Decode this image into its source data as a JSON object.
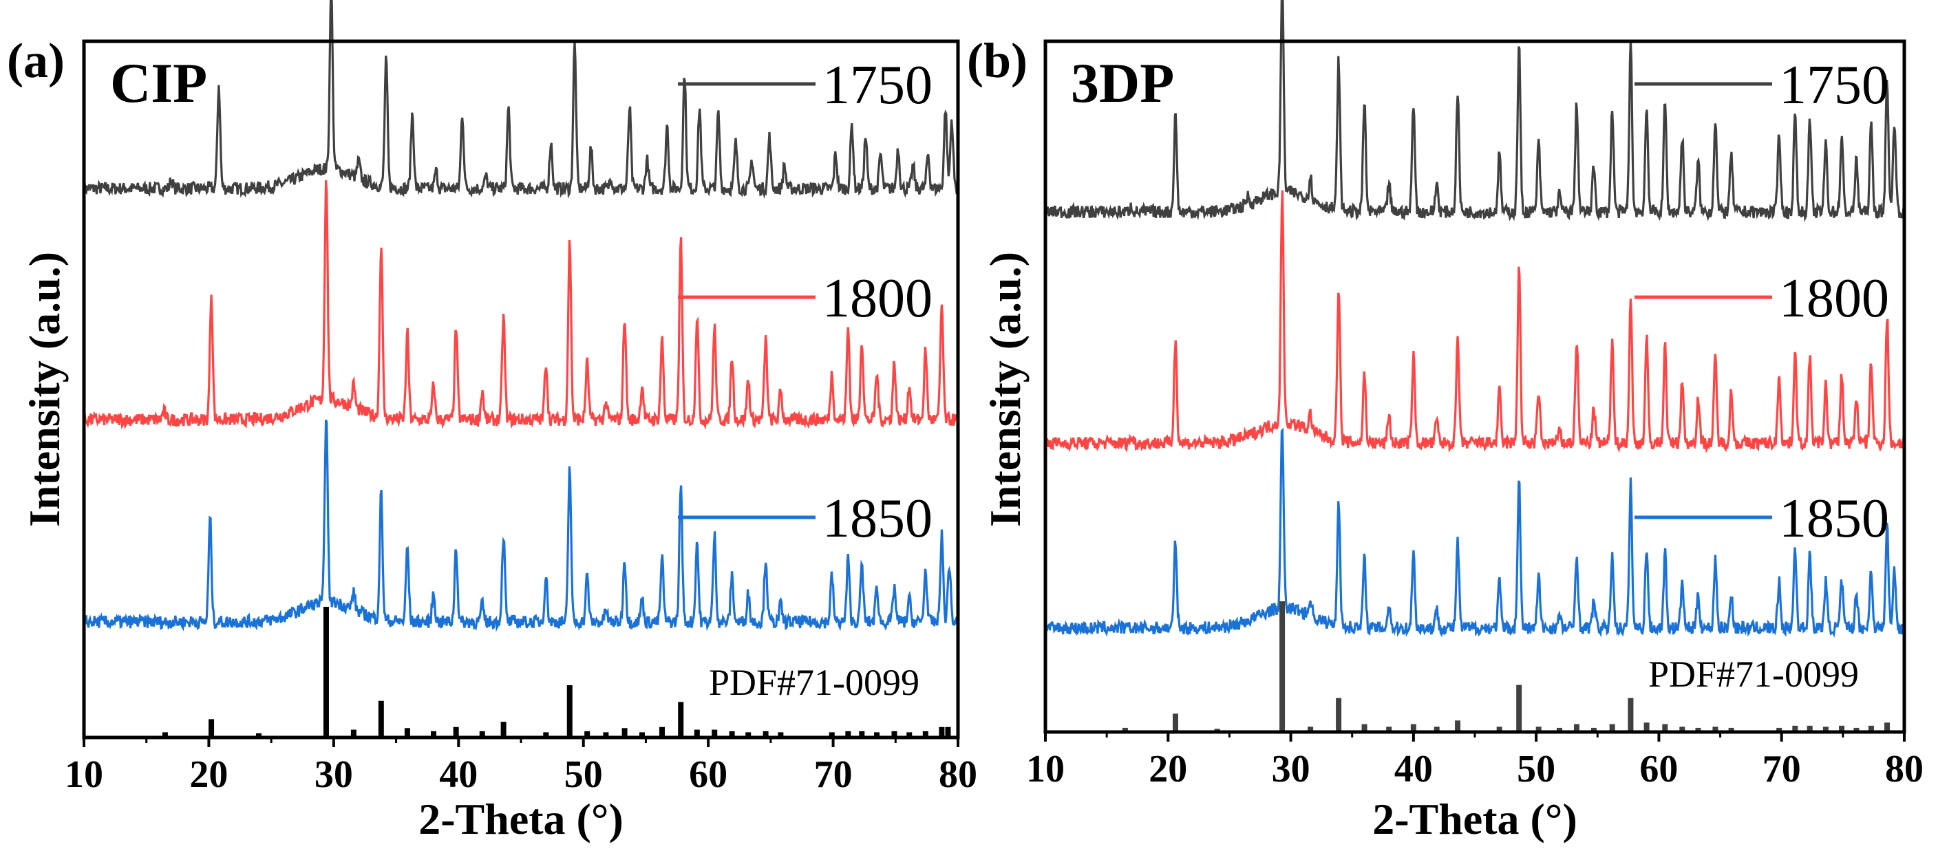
{
  "figure": {
    "panels": [
      {
        "panel_label": "(a)",
        "title": "CIP",
        "reference_label": "PDF#71-0099",
        "reference_color": "#000000"
      },
      {
        "panel_label": "(b)",
        "title": "3DP",
        "reference_label": "PDF#71-0099",
        "reference_color": "#404040"
      }
    ]
  },
  "chart_data": [
    {
      "type": "line",
      "title": "CIP",
      "panel_label": "(a)",
      "xlabel": "2-Theta (°)",
      "ylabel": "Intensity (a.u.)",
      "xlim": [
        10,
        80
      ],
      "ylim": [
        0,
        12
      ],
      "xticks": [
        "10",
        "20",
        "30",
        "40",
        "50",
        "60",
        "70",
        "80"
      ],
      "series": [
        {
          "name": "1750",
          "color": "#404040",
          "baseline": 9.5,
          "peaks": [
            [
              17.0,
              0.15
            ],
            [
              20.8,
              1.8
            ],
            [
              29.8,
              3.2
            ],
            [
              32.0,
              0.3
            ],
            [
              34.2,
              2.2
            ],
            [
              36.3,
              1.3
            ],
            [
              38.2,
              0.3
            ],
            [
              40.3,
              1.3
            ],
            [
              42.2,
              0.2
            ],
            [
              44.0,
              1.4
            ],
            [
              47.4,
              0.8
            ],
            [
              49.3,
              2.5
            ],
            [
              50.6,
              0.7
            ],
            [
              52.2,
              0.2
            ],
            [
              53.7,
              1.4
            ],
            [
              55.1,
              0.5
            ],
            [
              56.7,
              1.1
            ],
            [
              58.1,
              2.0
            ],
            [
              59.3,
              1.4
            ],
            [
              60.8,
              1.3
            ],
            [
              62.2,
              0.8
            ],
            [
              63.5,
              0.5
            ],
            [
              64.9,
              0.9
            ],
            [
              66.1,
              0.4
            ],
            [
              70.2,
              0.6
            ],
            [
              71.5,
              1.1
            ],
            [
              72.6,
              0.9
            ],
            [
              73.8,
              0.6
            ],
            [
              75.2,
              0.7
            ],
            [
              76.4,
              0.4
            ],
            [
              77.6,
              0.6
            ],
            [
              79.0,
              1.4
            ],
            [
              79.5,
              1.2
            ]
          ]
        },
        {
          "name": "1800",
          "color": "#ff4444",
          "baseline": 5.5,
          "peaks": [
            [
              16.4,
              0.15
            ],
            [
              20.2,
              2.2
            ],
            [
              29.4,
              3.9
            ],
            [
              31.6,
              0.4
            ],
            [
              33.8,
              3.0
            ],
            [
              35.9,
              1.5
            ],
            [
              38.0,
              0.6
            ],
            [
              39.8,
              1.6
            ],
            [
              41.9,
              0.5
            ],
            [
              43.6,
              1.8
            ],
            [
              47.0,
              1.0
            ],
            [
              48.9,
              3.1
            ],
            [
              50.3,
              1.0
            ],
            [
              51.8,
              0.3
            ],
            [
              53.3,
              1.8
            ],
            [
              54.7,
              0.6
            ],
            [
              56.3,
              1.4
            ],
            [
              57.8,
              3.1
            ],
            [
              59.1,
              1.8
            ],
            [
              60.5,
              1.6
            ],
            [
              61.9,
              1.1
            ],
            [
              63.2,
              0.7
            ],
            [
              64.6,
              1.4
            ],
            [
              65.8,
              0.5
            ],
            [
              69.9,
              0.8
            ],
            [
              71.2,
              1.6
            ],
            [
              72.3,
              1.4
            ],
            [
              73.5,
              0.8
            ],
            [
              74.9,
              1.0
            ],
            [
              76.1,
              0.6
            ],
            [
              77.4,
              1.2
            ],
            [
              78.7,
              2.0
            ]
          ]
        },
        {
          "name": "1850",
          "color": "#1a72d8",
          "baseline": 2.0,
          "peaks": [
            [
              20.1,
              1.8
            ],
            [
              29.4,
              3.3
            ],
            [
              31.6,
              0.3
            ],
            [
              33.8,
              2.2
            ],
            [
              35.9,
              1.3
            ],
            [
              38.0,
              0.5
            ],
            [
              39.8,
              1.3
            ],
            [
              41.9,
              0.3
            ],
            [
              43.6,
              1.5
            ],
            [
              47.0,
              0.8
            ],
            [
              48.9,
              2.7
            ],
            [
              50.3,
              0.8
            ],
            [
              51.8,
              0.2
            ],
            [
              53.3,
              1.1
            ],
            [
              54.7,
              0.4
            ],
            [
              56.3,
              1.1
            ],
            [
              57.8,
              2.4
            ],
            [
              59.1,
              1.4
            ],
            [
              60.5,
              1.5
            ],
            [
              61.9,
              0.8
            ],
            [
              63.2,
              0.5
            ],
            [
              64.6,
              1.1
            ],
            [
              65.8,
              0.3
            ],
            [
              69.9,
              0.8
            ],
            [
              71.2,
              1.1
            ],
            [
              72.3,
              1.0
            ],
            [
              73.5,
              0.6
            ],
            [
              74.9,
              0.6
            ],
            [
              76.1,
              0.4
            ],
            [
              77.4,
              0.9
            ],
            [
              78.7,
              1.5
            ],
            [
              79.3,
              1.0
            ]
          ]
        }
      ],
      "reference": {
        "name": "PDF#71-0099",
        "positions": [
          16.5,
          20.2,
          24.0,
          29.4,
          31.6,
          33.8,
          35.9,
          38.0,
          39.8,
          41.9,
          43.6,
          47.0,
          48.9,
          50.3,
          51.8,
          53.3,
          54.7,
          56.3,
          57.8,
          59.1,
          60.5,
          61.9,
          63.2,
          64.6,
          65.8,
          69.9,
          71.2,
          72.3,
          73.5,
          74.9,
          76.1,
          77.4,
          78.7,
          79.2
        ],
        "intensities": [
          0.1,
          0.35,
          0.08,
          2.5,
          0.15,
          0.7,
          0.18,
          0.12,
          0.2,
          0.12,
          0.3,
          0.1,
          1.0,
          0.12,
          0.1,
          0.18,
          0.1,
          0.2,
          0.68,
          0.15,
          0.15,
          0.12,
          0.1,
          0.12,
          0.1,
          0.1,
          0.12,
          0.12,
          0.1,
          0.12,
          0.1,
          0.12,
          0.2,
          0.2
        ]
      },
      "annotations": [
        "1750",
        "1800",
        "1850",
        "PDF#71-0099"
      ]
    },
    {
      "type": "line",
      "title": "3DP",
      "panel_label": "(b)",
      "xlabel": "2-Theta (°)",
      "ylabel": "Intensity (a.u.)",
      "xlim": [
        10,
        80
      ],
      "ylim": [
        0,
        12
      ],
      "xticks": [
        "10",
        "20",
        "30",
        "40",
        "50",
        "60",
        "70",
        "80"
      ],
      "series": [
        {
          "name": "1750",
          "color": "#404040",
          "baseline": 9.0,
          "peaks": [
            [
              17.0,
              0.1
            ],
            [
              20.6,
              1.7
            ],
            [
              26.5,
              0.15
            ],
            [
              29.3,
              3.7
            ],
            [
              31.6,
              0.4
            ],
            [
              33.9,
              2.6
            ],
            [
              36.0,
              1.9
            ],
            [
              38.0,
              0.5
            ],
            [
              40.0,
              1.9
            ],
            [
              41.9,
              0.5
            ],
            [
              43.6,
              2.1
            ],
            [
              47.0,
              1.0
            ],
            [
              48.6,
              2.9
            ],
            [
              50.2,
              1.2
            ],
            [
              51.9,
              0.3
            ],
            [
              53.3,
              1.9
            ],
            [
              54.7,
              0.8
            ],
            [
              56.2,
              1.8
            ],
            [
              57.7,
              2.9
            ],
            [
              59.0,
              1.8
            ],
            [
              60.5,
              1.9
            ],
            [
              61.9,
              1.3
            ],
            [
              63.2,
              0.9
            ],
            [
              64.6,
              1.6
            ],
            [
              65.9,
              1.0
            ],
            [
              69.8,
              1.4
            ],
            [
              71.1,
              1.7
            ],
            [
              72.3,
              1.6
            ],
            [
              73.6,
              1.2
            ],
            [
              74.9,
              1.3
            ],
            [
              76.1,
              0.9
            ],
            [
              77.3,
              1.5
            ],
            [
              78.6,
              2.3
            ],
            [
              79.2,
              1.6
            ]
          ]
        },
        {
          "name": "1800",
          "color": "#ff4444",
          "baseline": 5.0,
          "peaks": [
            [
              17.0,
              0.1
            ],
            [
              20.6,
              1.8
            ],
            [
              29.3,
              4.0
            ],
            [
              31.6,
              0.3
            ],
            [
              33.9,
              2.7
            ],
            [
              36.0,
              1.2
            ],
            [
              38.0,
              0.5
            ],
            [
              40.0,
              1.5
            ],
            [
              41.9,
              0.4
            ],
            [
              43.6,
              1.8
            ],
            [
              47.0,
              0.9
            ],
            [
              48.6,
              3.1
            ],
            [
              50.2,
              0.9
            ],
            [
              51.9,
              0.2
            ],
            [
              53.3,
              1.8
            ],
            [
              54.7,
              0.6
            ],
            [
              56.2,
              1.8
            ],
            [
              57.7,
              2.5
            ],
            [
              59.0,
              1.8
            ],
            [
              60.5,
              1.7
            ],
            [
              61.9,
              1.1
            ],
            [
              63.2,
              0.8
            ],
            [
              64.6,
              1.5
            ],
            [
              65.9,
              0.9
            ],
            [
              69.8,
              1.2
            ],
            [
              71.1,
              1.6
            ],
            [
              72.3,
              1.5
            ],
            [
              73.6,
              1.0
            ],
            [
              74.9,
              1.2
            ],
            [
              76.1,
              0.8
            ],
            [
              77.3,
              1.4
            ],
            [
              78.6,
              2.2
            ]
          ]
        },
        {
          "name": "1850",
          "color": "#1a72d8",
          "baseline": 1.8,
          "peaks": [
            [
              20.6,
              1.5
            ],
            [
              29.3,
              3.2
            ],
            [
              31.6,
              0.3
            ],
            [
              33.9,
              2.2
            ],
            [
              36.0,
              1.2
            ],
            [
              38.0,
              0.4
            ],
            [
              40.0,
              1.3
            ],
            [
              41.9,
              0.3
            ],
            [
              43.6,
              1.5
            ],
            [
              47.0,
              0.8
            ],
            [
              48.6,
              2.6
            ],
            [
              50.2,
              0.9
            ],
            [
              51.9,
              0.2
            ],
            [
              53.3,
              1.3
            ],
            [
              54.7,
              0.5
            ],
            [
              56.2,
              1.3
            ],
            [
              57.7,
              2.5
            ],
            [
              59.0,
              1.4
            ],
            [
              60.5,
              1.3
            ],
            [
              61.9,
              0.8
            ],
            [
              63.2,
              0.6
            ],
            [
              64.6,
              1.2
            ],
            [
              65.9,
              0.6
            ],
            [
              69.8,
              0.8
            ],
            [
              71.1,
              1.4
            ],
            [
              72.3,
              1.3
            ],
            [
              73.6,
              0.8
            ],
            [
              74.9,
              0.8
            ],
            [
              76.1,
              0.6
            ],
            [
              77.3,
              1.0
            ],
            [
              78.6,
              1.8
            ],
            [
              79.2,
              1.0
            ]
          ]
        }
      ],
      "reference": {
        "name": "PDF#71-0099",
        "positions": [
          16.5,
          20.6,
          24.0,
          29.3,
          31.6,
          33.9,
          36.0,
          38.0,
          40.0,
          41.9,
          43.6,
          47.0,
          48.6,
          50.2,
          51.9,
          53.3,
          54.7,
          56.2,
          57.7,
          59.0,
          60.5,
          61.9,
          63.2,
          64.6,
          65.9,
          69.8,
          71.1,
          72.3,
          73.6,
          74.9,
          76.1,
          77.3,
          78.6
        ],
        "intensities": [
          0.08,
          0.35,
          0.06,
          2.5,
          0.1,
          0.65,
          0.15,
          0.1,
          0.15,
          0.1,
          0.22,
          0.1,
          0.9,
          0.1,
          0.08,
          0.15,
          0.08,
          0.15,
          0.65,
          0.18,
          0.15,
          0.1,
          0.08,
          0.1,
          0.08,
          0.08,
          0.12,
          0.12,
          0.1,
          0.12,
          0.08,
          0.12,
          0.18
        ]
      },
      "annotations": [
        "1750",
        "1800",
        "1850",
        "PDF#71-0099"
      ]
    }
  ]
}
